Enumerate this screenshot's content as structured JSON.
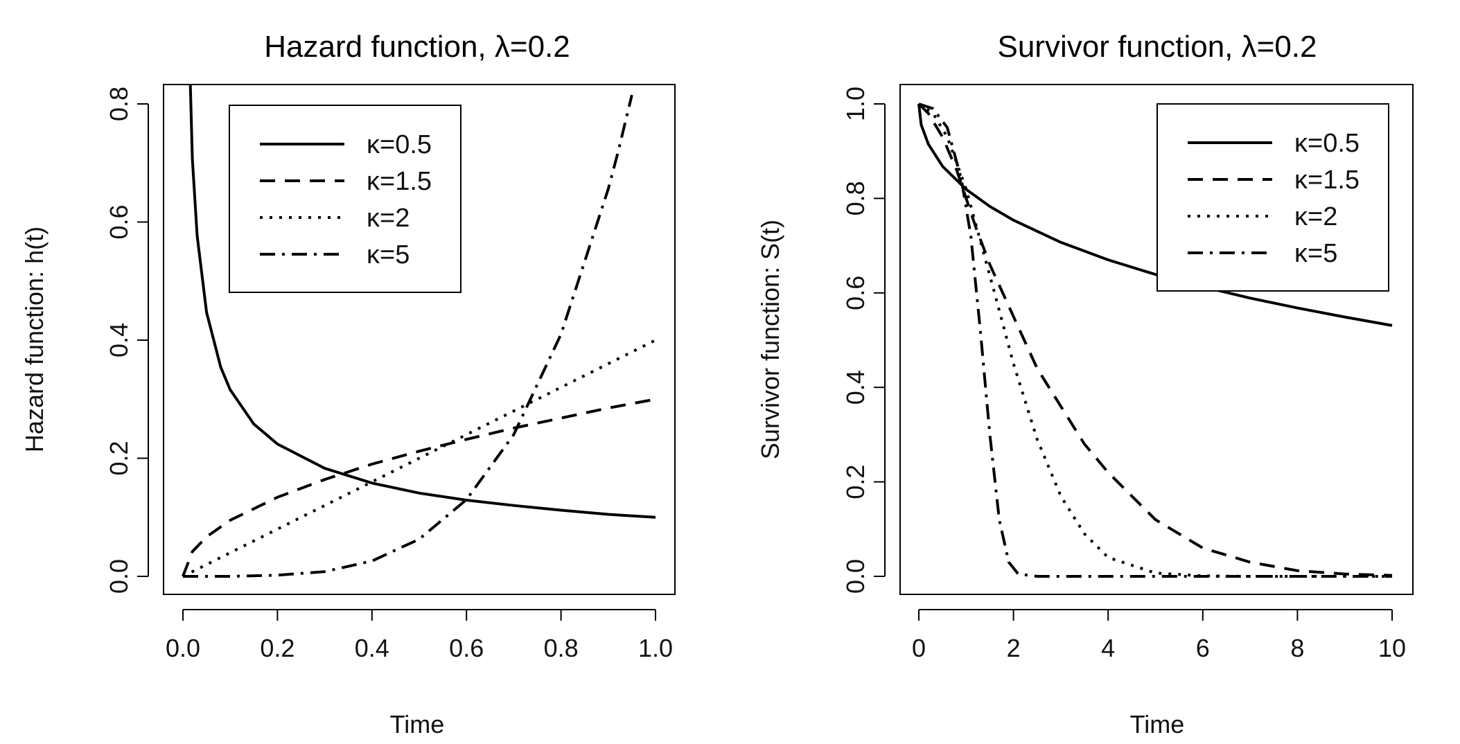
{
  "chart_data": [
    {
      "type": "line",
      "title": "Hazard function, λ=0.2",
      "xlabel": "Time",
      "ylabel": "Hazard function: h(t)",
      "xlim": [
        0,
        1
      ],
      "ylim": [
        0,
        0.8
      ],
      "xticks": [
        "0.0",
        "0.2",
        "0.4",
        "0.6",
        "0.8",
        "1.0"
      ],
      "yticks": [
        "0.0",
        "0.2",
        "0.4",
        "0.6",
        "0.8"
      ],
      "legend_position": "top-left",
      "series": [
        {
          "name": "κ=0.5",
          "dash": "solid",
          "x": [
            0.01,
            0.02,
            0.03,
            0.05,
            0.08,
            0.1,
            0.15,
            0.2,
            0.3,
            0.4,
            0.5,
            0.6,
            0.7,
            0.8,
            0.9,
            1.0
          ],
          "y": [
            1.0,
            0.707,
            0.577,
            0.447,
            0.354,
            0.316,
            0.258,
            0.224,
            0.183,
            0.158,
            0.141,
            0.129,
            0.12,
            0.112,
            0.105,
            0.1
          ]
        },
        {
          "name": "κ=1.5",
          "dash": "dashed",
          "x": [
            0.0,
            0.02,
            0.05,
            0.1,
            0.2,
            0.3,
            0.4,
            0.5,
            0.6,
            0.7,
            0.8,
            0.9,
            1.0
          ],
          "y": [
            0.0,
            0.042,
            0.067,
            0.095,
            0.134,
            0.164,
            0.19,
            0.212,
            0.232,
            0.251,
            0.268,
            0.285,
            0.3
          ]
        },
        {
          "name": "κ=2",
          "dash": "dotted",
          "x": [
            0.0,
            0.1,
            0.2,
            0.3,
            0.4,
            0.5,
            0.6,
            0.7,
            0.8,
            0.9,
            1.0
          ],
          "y": [
            0.0,
            0.04,
            0.08,
            0.12,
            0.16,
            0.2,
            0.24,
            0.28,
            0.32,
            0.36,
            0.4
          ]
        },
        {
          "name": "κ=5",
          "dash": "dashdot",
          "x": [
            0.0,
            0.1,
            0.2,
            0.3,
            0.4,
            0.5,
            0.6,
            0.7,
            0.8,
            0.9,
            0.92,
            0.95
          ],
          "y": [
            0.0,
            0.0,
            0.002,
            0.008,
            0.026,
            0.063,
            0.13,
            0.24,
            0.41,
            0.656,
            0.716,
            0.815
          ]
        }
      ]
    },
    {
      "type": "line",
      "title": "Survivor function, λ=0.2",
      "xlabel": "Time",
      "ylabel": "Survivor function: S(t)",
      "xlim": [
        0,
        10
      ],
      "ylim": [
        0,
        1
      ],
      "xticks": [
        "0",
        "2",
        "4",
        "6",
        "8",
        "10"
      ],
      "yticks": [
        "0.0",
        "0.2",
        "0.4",
        "0.6",
        "0.8",
        "1.0"
      ],
      "legend_position": "top-right",
      "series": [
        {
          "name": "κ=0.5",
          "dash": "solid",
          "x": [
            0,
            0.05,
            0.2,
            0.5,
            1,
            1.5,
            2,
            3,
            4,
            5,
            6,
            7,
            8,
            9,
            10
          ],
          "y": [
            1.0,
            0.956,
            0.915,
            0.868,
            0.819,
            0.783,
            0.754,
            0.707,
            0.67,
            0.639,
            0.613,
            0.589,
            0.568,
            0.549,
            0.531
          ]
        },
        {
          "name": "κ=1.5",
          "dash": "dashed",
          "x": [
            0,
            0.2,
            0.5,
            0.8,
            1,
            1.2,
            1.5,
            2,
            2.5,
            3,
            3.5,
            4,
            5,
            6,
            7,
            8,
            9,
            10
          ],
          "y": [
            1.0,
            0.98,
            0.93,
            0.86,
            0.8,
            0.74,
            0.66,
            0.55,
            0.44,
            0.36,
            0.28,
            0.22,
            0.12,
            0.06,
            0.03,
            0.012,
            0.005,
            0.002
          ]
        },
        {
          "name": "κ=2",
          "dash": "dotted",
          "x": [
            0,
            0.3,
            0.6,
            1,
            1.3,
            1.6,
            2,
            2.5,
            3,
            3.5,
            4,
            5,
            6,
            7,
            8,
            10
          ],
          "y": [
            1.0,
            0.98,
            0.93,
            0.82,
            0.71,
            0.6,
            0.45,
            0.29,
            0.17,
            0.09,
            0.04,
            0.007,
            0.001,
            0,
            0,
            0
          ]
        },
        {
          "name": "κ=5",
          "dash": "dashdot",
          "x": [
            0,
            0.3,
            0.6,
            0.9,
            1.1,
            1.3,
            1.5,
            1.7,
            1.9,
            2.1,
            2.5,
            3,
            4,
            6,
            8,
            10
          ],
          "y": [
            1.0,
            0.99,
            0.95,
            0.84,
            0.72,
            0.52,
            0.3,
            0.12,
            0.03,
            0.005,
            0,
            0,
            0,
            0,
            0,
            0
          ]
        }
      ]
    }
  ]
}
